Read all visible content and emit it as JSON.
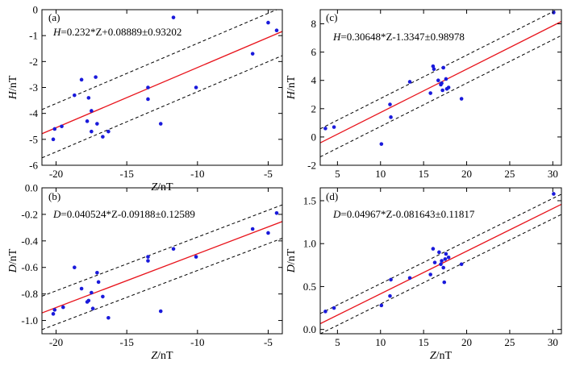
{
  "colors": {
    "fit": "#e8141c",
    "band": "#000000",
    "point": "#1a1adb",
    "axis": "#000000"
  },
  "chart_data": [
    {
      "id": "a",
      "type": "scatter",
      "panel_label": "(a)",
      "equation_var": "H",
      "equation_rest": "=0.232*Z+0.08889±0.93202",
      "ylabel_var": "H",
      "ylabel_unit": "/nT",
      "xlabel_var": "Z",
      "xlabel_unit": "/nT",
      "xlim": [
        -21,
        -4
      ],
      "ylim": [
        -6,
        0
      ],
      "xticks": [
        -20,
        -15,
        -10,
        -5
      ],
      "xtick_labels": [
        "-20",
        "-15",
        "-10",
        "-5"
      ],
      "yticks": [
        -6,
        -5,
        -4,
        -3,
        -2,
        -1,
        0
      ],
      "ytick_labels": [
        "-6",
        "-5",
        "-4",
        "-3",
        "-2",
        "-1",
        "0"
      ],
      "fit": {
        "slope": 0.232,
        "intercept": 0.08889,
        "band": 0.93202
      },
      "points": [
        [
          -20.2,
          -5.0
        ],
        [
          -20.1,
          -4.6
        ],
        [
          -19.6,
          -4.5
        ],
        [
          -18.7,
          -3.3
        ],
        [
          -18.2,
          -2.7
        ],
        [
          -17.8,
          -4.3
        ],
        [
          -17.7,
          -3.4
        ],
        [
          -17.5,
          -3.9
        ],
        [
          -17.5,
          -4.7
        ],
        [
          -17.2,
          -2.6
        ],
        [
          -17.1,
          -4.4
        ],
        [
          -16.7,
          -4.9
        ],
        [
          -16.3,
          -4.7
        ],
        [
          -13.5,
          -3.0
        ],
        [
          -13.5,
          -3.45
        ],
        [
          -12.6,
          -4.4
        ],
        [
          -11.7,
          -0.3
        ],
        [
          -10.1,
          -3.0
        ],
        [
          -6.1,
          -1.7
        ],
        [
          -5.0,
          -0.5
        ],
        [
          -4.4,
          -0.8
        ]
      ]
    },
    {
      "id": "c",
      "type": "scatter",
      "panel_label": "(c)",
      "equation_var": "H",
      "equation_rest": "=0.30648*Z-1.3347±0.98978",
      "ylabel_var": "H",
      "ylabel_unit": "/nT",
      "xlabel_var": "",
      "xlabel_unit": "",
      "xlim": [
        3,
        31
      ],
      "ylim": [
        -2,
        9
      ],
      "xticks": [
        5,
        10,
        15,
        20,
        25,
        30
      ],
      "xtick_labels": [
        "5",
        "10",
        "15",
        "20",
        "25",
        "30"
      ],
      "yticks": [
        -2,
        0,
        2,
        4,
        6,
        8
      ],
      "ytick_labels": [
        "-2",
        "0",
        "2",
        "4",
        "6",
        "8"
      ],
      "fit": {
        "slope": 0.30648,
        "intercept": -1.3347,
        "band": 0.98978
      },
      "points": [
        [
          3.6,
          0.6
        ],
        [
          4.6,
          0.7
        ],
        [
          10.1,
          -0.5
        ],
        [
          11.1,
          2.3
        ],
        [
          11.2,
          1.4
        ],
        [
          13.4,
          3.9
        ],
        [
          15.8,
          3.1
        ],
        [
          16.1,
          5.0
        ],
        [
          16.2,
          4.8
        ],
        [
          16.7,
          4.0
        ],
        [
          17.0,
          3.7
        ],
        [
          17.1,
          3.8
        ],
        [
          17.2,
          3.3
        ],
        [
          17.3,
          4.9
        ],
        [
          17.6,
          4.1
        ],
        [
          17.7,
          3.4
        ],
        [
          17.9,
          3.5
        ],
        [
          19.4,
          2.7
        ],
        [
          30.1,
          8.8
        ]
      ]
    },
    {
      "id": "b",
      "type": "scatter",
      "panel_label": "(b)",
      "equation_var": "D",
      "equation_rest": "=0.040524*Z-0.09188±0.12589",
      "ylabel_var": "D",
      "ylabel_unit": "/nT",
      "xlabel_var": "Z",
      "xlabel_unit": "/nT",
      "xlim": [
        -21,
        -4
      ],
      "ylim": [
        -1.1,
        0
      ],
      "xticks": [
        -20,
        -15,
        -10,
        -5
      ],
      "xtick_labels": [
        "-20",
        "-15",
        "-10",
        "-5"
      ],
      "yticks": [
        -1.0,
        -0.8,
        -0.6,
        -0.4,
        -0.2,
        0.0
      ],
      "ytick_labels": [
        "-1.0",
        "-0.8",
        "-0.6",
        "-0.4",
        "-0.2",
        "0.0"
      ],
      "fit": {
        "slope": 0.040524,
        "intercept": -0.09188,
        "band": 0.12589
      },
      "points": [
        [
          -20.2,
          -0.95
        ],
        [
          -20.1,
          -0.92
        ],
        [
          -19.5,
          -0.9
        ],
        [
          -18.7,
          -0.6
        ],
        [
          -18.2,
          -0.76
        ],
        [
          -17.8,
          -0.86
        ],
        [
          -17.7,
          -0.85
        ],
        [
          -17.5,
          -0.79
        ],
        [
          -17.4,
          -0.91
        ],
        [
          -17.1,
          -0.64
        ],
        [
          -17.0,
          -0.71
        ],
        [
          -16.7,
          -0.82
        ],
        [
          -16.3,
          -0.98
        ],
        [
          -13.5,
          -0.52
        ],
        [
          -13.5,
          -0.55
        ],
        [
          -12.6,
          -0.93
        ],
        [
          -11.7,
          -0.46
        ],
        [
          -10.1,
          -0.52
        ],
        [
          -6.1,
          -0.31
        ],
        [
          -5.0,
          -0.34
        ],
        [
          -4.4,
          -0.19
        ]
      ]
    },
    {
      "id": "d",
      "type": "scatter",
      "panel_label": "(d)",
      "equation_var": "D",
      "equation_rest": "=0.04967*Z-0.081643±0.11817",
      "ylabel_var": "D",
      "ylabel_unit": "/nT",
      "xlabel_var": "Z",
      "xlabel_unit": "/nT",
      "xlim": [
        3,
        31
      ],
      "ylim": [
        -0.05,
        1.65
      ],
      "xticks": [
        5,
        10,
        15,
        20,
        25,
        30
      ],
      "xtick_labels": [
        "5",
        "10",
        "15",
        "20",
        "25",
        "30"
      ],
      "yticks": [
        0.0,
        0.5,
        1.0,
        1.5
      ],
      "ytick_labels": [
        "0.0",
        "0.5",
        "1.0",
        "1.5"
      ],
      "fit": {
        "slope": 0.04967,
        "intercept": -0.081643,
        "band": 0.11817
      },
      "points": [
        [
          3.6,
          0.21
        ],
        [
          4.6,
          0.25
        ],
        [
          10.1,
          0.28
        ],
        [
          11.1,
          0.39
        ],
        [
          11.2,
          0.58
        ],
        [
          13.4,
          0.6
        ],
        [
          15.8,
          0.64
        ],
        [
          16.1,
          0.94
        ],
        [
          16.3,
          0.78
        ],
        [
          16.8,
          0.9
        ],
        [
          17.0,
          0.76
        ],
        [
          17.1,
          0.8
        ],
        [
          17.3,
          0.72
        ],
        [
          17.4,
          0.55
        ],
        [
          17.5,
          0.82
        ],
        [
          17.6,
          0.88
        ],
        [
          17.9,
          0.84
        ],
        [
          19.4,
          0.76
        ],
        [
          30.1,
          1.58
        ]
      ]
    }
  ]
}
